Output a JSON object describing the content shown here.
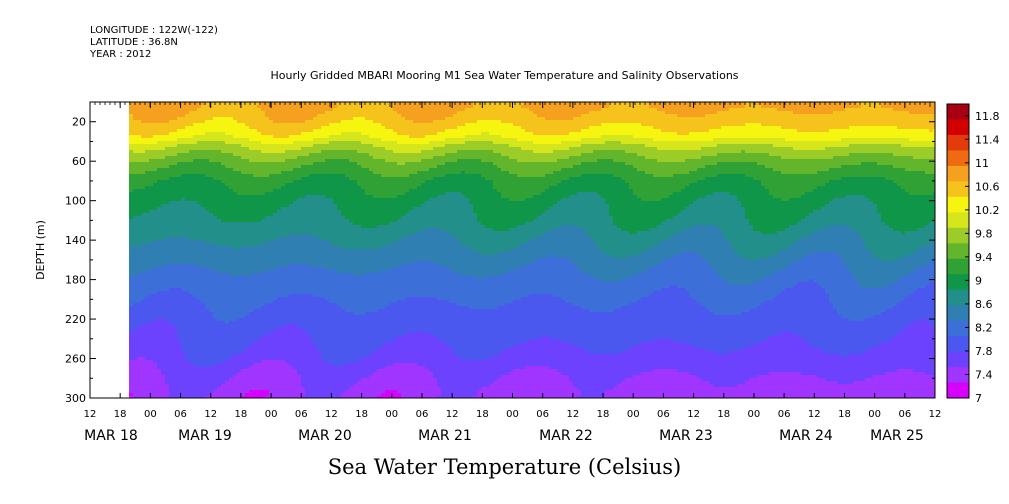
{
  "header": {
    "longitude": "LONGITUDE : 122W(-122)",
    "latitude": "LATITUDE : 36.8N",
    "year": "YEAR : 2012"
  },
  "chart_data": {
    "type": "heatmap",
    "title": "Hourly Gridded MBARI Mooring M1 Sea Water Temperature and Salinity Observations",
    "xlabel": "Sea Water Temperature (Celsius)",
    "ylabel": "DEPTH (m)",
    "y_ticks": [
      20,
      60,
      100,
      140,
      180,
      220,
      260,
      300
    ],
    "ylim": [
      300,
      0
    ],
    "x_hour_ticks": [
      "12",
      "18",
      "00",
      "06",
      "12",
      "18",
      "00",
      "06",
      "12",
      "18",
      "00",
      "06",
      "12",
      "18",
      "00",
      "06",
      "12",
      "18",
      "00",
      "06",
      "12",
      "18",
      "00",
      "06",
      "12",
      "18",
      "00",
      "06",
      "12",
      "18",
      "00",
      "06",
      "12"
    ],
    "x_day_labels": [
      "MAR 18",
      "MAR 19",
      "MAR 20",
      "MAR 21",
      "MAR 22",
      "MAR 23",
      "MAR 24",
      "MAR 25"
    ],
    "colorbar_labels": [
      "11.8",
      "11.4",
      "11",
      "10.6",
      "10.2",
      "9.8",
      "9.4",
      "9",
      "8.6",
      "8.2",
      "7.8",
      "7.4",
      "7"
    ],
    "colorbar_range": [
      7,
      12
    ],
    "colors": [
      "#d800ff",
      "#9f35ff",
      "#6d42ff",
      "#4a58f0",
      "#3d6fd9",
      "#2f7fb3",
      "#238f8a",
      "#0f9648",
      "#2fa135",
      "#63b52c",
      "#9ccc28",
      "#d6e61c",
      "#f6f510",
      "#f6c31c",
      "#f5a01e",
      "#ef6a10",
      "#e43b0c",
      "#d30000",
      "#a80010"
    ],
    "depth_profile": {
      "depth_m": [
        5,
        20,
        35,
        45,
        60,
        80,
        100,
        120,
        140,
        160,
        180,
        200,
        220,
        240,
        260,
        280,
        295
      ],
      "temp_c": [
        10.8,
        10.6,
        10.3,
        9.9,
        9.5,
        9.1,
        8.9,
        8.75,
        8.55,
        8.35,
        8.15,
        8.0,
        7.85,
        7.75,
        7.6,
        7.4,
        7.3
      ]
    }
  }
}
